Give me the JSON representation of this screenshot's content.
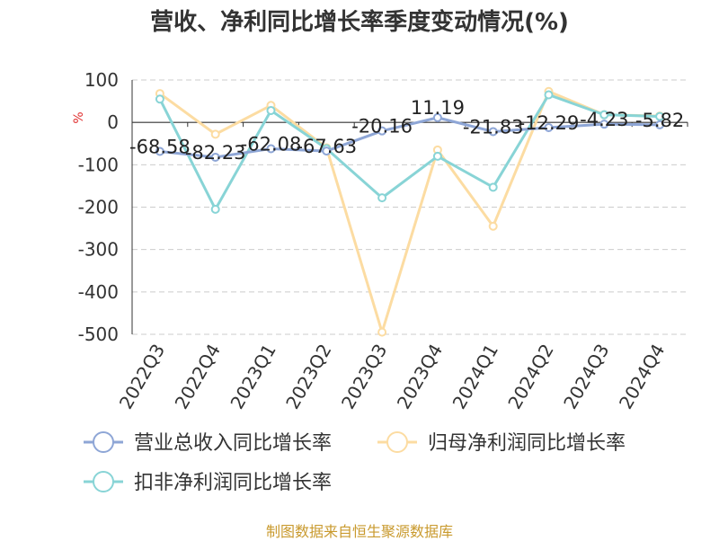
{
  "chart_data": {
    "type": "line",
    "title": "营收、净利同比增长率季度变动情况(%)",
    "ylabel": "%",
    "ylim": [
      -500,
      100
    ],
    "yticks": [
      100,
      0,
      -100,
      -200,
      -300,
      -400,
      -500
    ],
    "categories": [
      "2022Q3",
      "2022Q4",
      "2023Q1",
      "2023Q2",
      "2023Q3",
      "2023Q4",
      "2024Q1",
      "2024Q2",
      "2024Q3",
      "2024Q4"
    ],
    "grid": true,
    "legend_position": "bottom",
    "series": [
      {
        "name": "营业总收入同比增长率",
        "color": "#8ea6d6",
        "values": [
          -68.58,
          -82.23,
          -62.08,
          -67.63,
          -20.16,
          11.19,
          -21.83,
          -12.29,
          -4.23,
          -5.82
        ],
        "labels": [
          "-68.58",
          "-82.23",
          "-62.08",
          "-67.63",
          "-20.16",
          "11.19",
          "-21.83",
          "-12.29",
          "-4.23",
          "-5.82"
        ]
      },
      {
        "name": "归母净利润同比增长率",
        "color": "#fcdca2",
        "values": [
          68,
          -28,
          40,
          -60,
          -495,
          -65,
          -245,
          73,
          18,
          15
        ]
      },
      {
        "name": "扣非净利润同比增长率",
        "color": "#88d4d6",
        "values": [
          55,
          -205,
          28,
          -62,
          -178,
          -80,
          -153,
          65,
          18,
          14
        ]
      }
    ]
  },
  "source": "制图数据来自恒生聚源数据库"
}
